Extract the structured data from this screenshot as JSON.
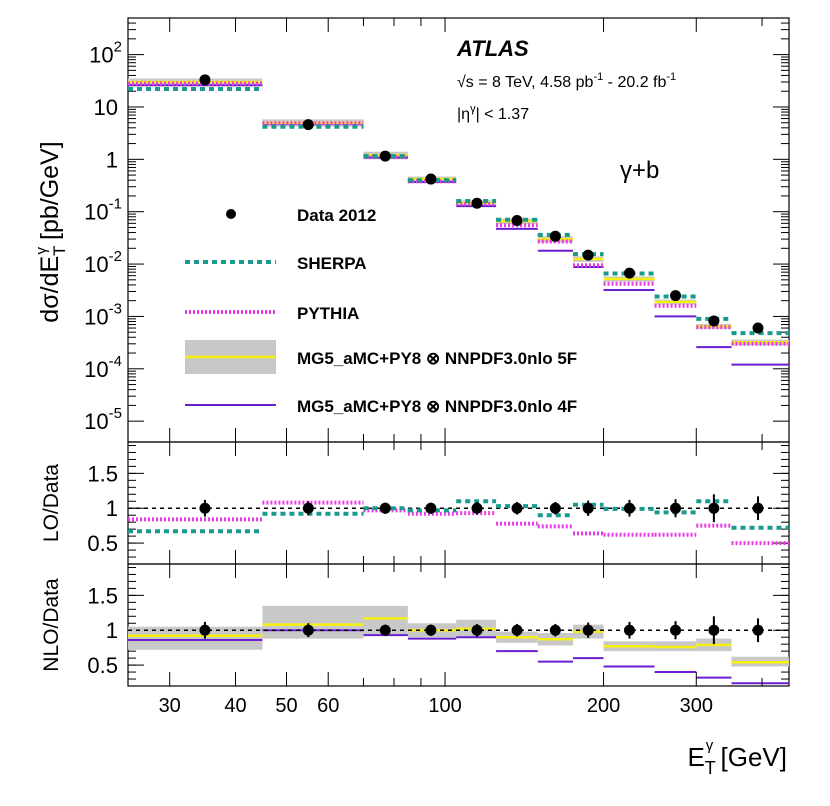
{
  "chart_data": {
    "type": "step-histogram",
    "experiment": "ATLAS",
    "energy_label": "√s = 8 TeV, 4.58 pb",
    "lumi_sup1": "-1",
    "lumi_mid": " - 20.2 fb",
    "lumi_sup2": "-1",
    "eta_cut": "|η",
    "eta_sup": "γ",
    "eta_rest": "| < 1.37",
    "channel": "γ+b",
    "xlabel": "E",
    "xlabel_sub": "T",
    "xlabel_sup": "γ",
    "xlabel_unit": " [GeV]",
    "ylabel": "dσ/dE",
    "ylabel_sub": "T",
    "ylabel_sup": "γ",
    "ylabel_unit": " [pb/GeV]",
    "xscale": "log",
    "xlim": [
      25,
      450
    ],
    "bins": [
      [
        25,
        45
      ],
      [
        45,
        70
      ],
      [
        70,
        85
      ],
      [
        85,
        105
      ],
      [
        105,
        125
      ],
      [
        125,
        150
      ],
      [
        150,
        175
      ],
      [
        175,
        200
      ],
      [
        200,
        250
      ],
      [
        250,
        300
      ],
      [
        300,
        350
      ],
      [
        350,
        450
      ]
    ],
    "x_ticks": [
      30,
      40,
      50,
      60,
      100,
      200,
      300
    ],
    "x_tick_labels": [
      "30",
      "40",
      "50",
      "60",
      "100",
      "200",
      "300"
    ],
    "top_panel": {
      "ylim": [
        4e-06,
        500
      ],
      "y_ticks": [
        {
          "v": 100,
          "base": "10",
          "exp": "2"
        },
        {
          "v": 10,
          "base": "10",
          "exp": ""
        },
        {
          "v": 1,
          "base": "1",
          "exp": ""
        },
        {
          "v": 0.1,
          "base": "10",
          "exp": "-1"
        },
        {
          "v": 0.01,
          "base": "10",
          "exp": "-2"
        },
        {
          "v": 0.001,
          "base": "10",
          "exp": "-3"
        },
        {
          "v": 0.0001,
          "base": "10",
          "exp": "-4"
        },
        {
          "v": 1e-05,
          "base": "10",
          "exp": "-5"
        }
      ],
      "data": [
        {
          "x": 35,
          "y": 33
        },
        {
          "x": 55,
          "y": 4.6
        },
        {
          "x": 77,
          "y": 1.15
        },
        {
          "x": 94,
          "y": 0.42
        },
        {
          "x": 115,
          "y": 0.145
        },
        {
          "x": 137,
          "y": 0.068
        },
        {
          "x": 162,
          "y": 0.034
        },
        {
          "x": 187,
          "y": 0.0148
        },
        {
          "x": 224,
          "y": 0.0067
        },
        {
          "x": 274,
          "y": 0.0025
        },
        {
          "x": 324,
          "y": 0.00082
        },
        {
          "x": 393,
          "y": 0.0006
        }
      ],
      "sherpa": [
        22,
        4.2,
        1.15,
        0.4,
        0.16,
        0.07,
        0.036,
        0.0155,
        0.0066,
        0.0024,
        0.0009,
        0.00048
      ],
      "pythia": [
        28,
        4.9,
        1.12,
        0.38,
        0.14,
        0.055,
        0.027,
        0.0095,
        0.0042,
        0.0016,
        0.00062,
        0.0003
      ],
      "mg5_5f": [
        30,
        5.0,
        1.2,
        0.42,
        0.148,
        0.066,
        0.03,
        0.0125,
        0.0052,
        0.0019,
        0.00065,
        0.00032
      ],
      "mg5_5f_band": [
        [
          25,
          35
        ],
        [
          4.2,
          5.8
        ],
        [
          1.0,
          1.4
        ],
        [
          0.37,
          0.47
        ],
        [
          0.13,
          0.165
        ],
        [
          0.058,
          0.074
        ],
        [
          0.026,
          0.034
        ],
        [
          0.011,
          0.014
        ],
        [
          0.0046,
          0.0058
        ],
        [
          0.0017,
          0.0021
        ],
        [
          0.00058,
          0.00072
        ],
        [
          0.00028,
          0.00036
        ]
      ],
      "mg5_4f": [
        26,
        4.8,
        1.08,
        0.37,
        0.128,
        0.047,
        0.018,
        0.0088,
        0.0032,
        0.001,
        0.00026,
        0.00012
      ]
    },
    "lo_panel": {
      "ylabel": "LO/Data",
      "ylim": [
        0.2,
        1.95
      ],
      "y_ticks": [
        0.5,
        1,
        1.5
      ],
      "y_tick_labels": [
        "0.5",
        "1",
        "1.5"
      ],
      "data_err": [
        0.12,
        0.1,
        0.08,
        0.08,
        0.09,
        0.09,
        0.09,
        0.11,
        0.12,
        0.13,
        0.2,
        0.17
      ],
      "sherpa": [
        0.67,
        0.92,
        1.0,
        0.97,
        1.1,
        1.03,
        0.9,
        1.05,
        0.99,
        0.94,
        1.1,
        0.72
      ],
      "pythia": [
        0.84,
        1.08,
        0.97,
        0.92,
        0.93,
        0.78,
        0.74,
        0.64,
        0.62,
        0.62,
        0.75,
        0.5
      ]
    },
    "nlo_panel": {
      "ylabel": "NLO/Data",
      "ylim": [
        0.2,
        1.95
      ],
      "y_ticks": [
        0.5,
        1,
        1.5
      ],
      "y_tick_labels": [
        "0.5",
        "1",
        "1.5"
      ],
      "data_err": [
        0.12,
        0.1,
        0.08,
        0.08,
        0.09,
        0.09,
        0.09,
        0.11,
        0.12,
        0.13,
        0.2,
        0.17
      ],
      "mg5_5f": [
        0.92,
        1.08,
        1.17,
        1.0,
        1.02,
        0.9,
        0.87,
        0.98,
        0.77,
        0.76,
        0.79,
        0.54
      ],
      "mg5_5f_band": [
        [
          0.72,
          1.05
        ],
        [
          0.88,
          1.35
        ],
        [
          0.92,
          1.35
        ],
        [
          0.9,
          1.1
        ],
        [
          0.9,
          1.15
        ],
        [
          0.82,
          0.98
        ],
        [
          0.78,
          0.96
        ],
        [
          0.88,
          1.08
        ],
        [
          0.7,
          0.84
        ],
        [
          0.7,
          0.84
        ],
        [
          0.7,
          0.88
        ],
        [
          0.48,
          0.62
        ]
      ],
      "mg5_4f": [
        0.86,
        1.0,
        0.93,
        0.88,
        0.9,
        0.7,
        0.55,
        0.6,
        0.48,
        0.4,
        0.32,
        0.24
      ]
    },
    "legend": [
      {
        "key": "data",
        "label": "Data 2012"
      },
      {
        "key": "sherpa",
        "label": "SHERPA"
      },
      {
        "key": "pythia",
        "label": "PYTHIA"
      },
      {
        "key": "mg5_5f",
        "label": "MG5_aMC+PY8 ⊗ NNPDF3.0nlo 5F"
      },
      {
        "key": "mg5_4f",
        "label": "MG5_aMC+PY8 ⊗ NNPDF3.0nlo 4F"
      }
    ],
    "colors": {
      "sherpa": "#1a9a8e",
      "pythia": "#e83be3",
      "mg5_5f": "#f5f010",
      "mg5_5f_band": "#c8c8c8",
      "mg5_4f": "#6a1fd1",
      "data": "#000000"
    }
  }
}
